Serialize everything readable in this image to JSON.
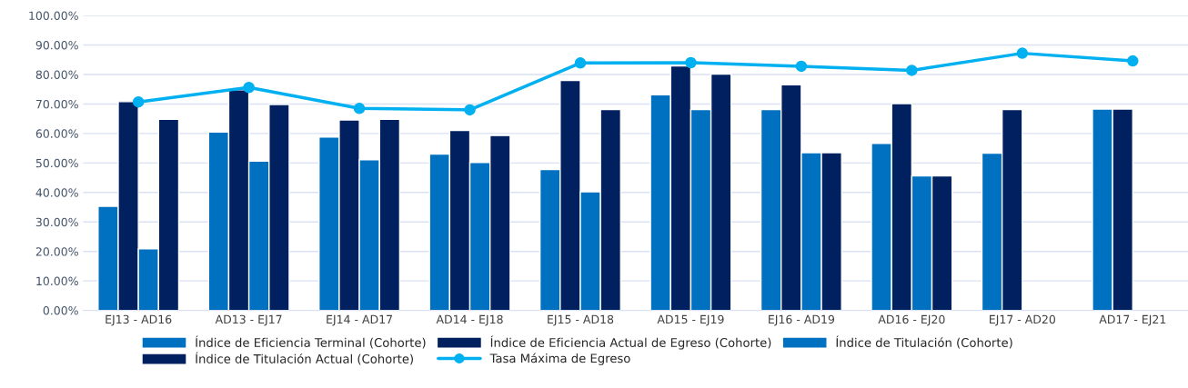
{
  "chart_data": {
    "type": "bar",
    "categories": [
      "EJ13 - AD16",
      "AD13 - EJ17",
      "EJ14 - AD17",
      "AD14 - EJ18",
      "EJ15 - AD18",
      "AD15 - EJ19",
      "EJ16 - AD19",
      "AD16 - EJ20",
      "EJ17 - AD20",
      "AD17 - EJ21"
    ],
    "series": [
      {
        "name": "Índice de Eficiencia Terminal (Cohorte)",
        "color": "#0070c0",
        "values": [
          35.3,
          60.5,
          58.8,
          53.0,
          47.8,
          73.1,
          68.1,
          56.6,
          53.3,
          68.3
        ]
      },
      {
        "name": "Índice de Eficiencia Actual de Egreso (Cohorte)",
        "color": "#002060",
        "values": [
          70.8,
          74.8,
          64.6,
          61.0,
          78.0,
          82.9,
          76.5,
          70.1,
          68.1,
          68.3
        ]
      },
      {
        "name": "Índice de Titulación (Cohorte)",
        "color": "#0070c0",
        "values": [
          20.9,
          50.6,
          51.1,
          50.2,
          40.2,
          68.1,
          53.5,
          45.6,
          null,
          null
        ]
      },
      {
        "name": "Índice de Titulación Actual (Cohorte)",
        "color": "#002060",
        "values": [
          64.8,
          69.8,
          64.8,
          59.3,
          68.1,
          80.1,
          53.5,
          45.6,
          null,
          null
        ]
      },
      {
        "name": "Tasa Máxima de Egreso",
        "color": "#00b0f0",
        "type": "line",
        "marker": "circle",
        "values": [
          70.7,
          75.6,
          68.5,
          68.0,
          83.9,
          84.0,
          82.8,
          81.4,
          87.2,
          84.6
        ]
      }
    ],
    "ylim": [
      0,
      100
    ],
    "yticks": [
      {
        "value": 0,
        "label": "0.00%"
      },
      {
        "value": 10,
        "label": "10.00%"
      },
      {
        "value": 20,
        "label": "20.00%"
      },
      {
        "value": 30,
        "label": "30.00%"
      },
      {
        "value": 40,
        "label": "40.00%"
      },
      {
        "value": 50,
        "label": "50.00%"
      },
      {
        "value": 60,
        "label": "60.00%"
      },
      {
        "value": 70,
        "label": "70.00%"
      },
      {
        "value": 80,
        "label": "80.00%"
      },
      {
        "value": 90,
        "label": "90.00%"
      },
      {
        "value": 100,
        "label": "100.00%"
      }
    ],
    "grid": "y",
    "legend": "bottom"
  }
}
